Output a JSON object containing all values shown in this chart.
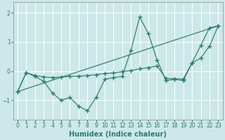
{
  "xlabel": "Humidex (Indice chaleur)",
  "ylabel": "",
  "background_color": "#cce8e8",
  "grid_color": "#ffffff",
  "line_color": "#2d7b6e",
  "xlim": [
    -0.5,
    23.5
  ],
  "ylim": [
    -1.65,
    2.35
  ],
  "yticks": [
    -1,
    0,
    1,
    2
  ],
  "xticks": [
    0,
    1,
    2,
    3,
    4,
    5,
    6,
    7,
    8,
    9,
    10,
    11,
    12,
    13,
    14,
    15,
    16,
    17,
    18,
    19,
    20,
    21,
    22,
    23
  ],
  "series1_x": [
    0,
    1,
    2,
    3,
    4,
    5,
    6,
    7,
    8,
    9,
    10,
    11,
    12,
    13,
    14,
    15,
    16,
    17,
    18,
    19,
    20,
    21,
    22,
    23
  ],
  "series1_y": [
    -0.7,
    -0.05,
    -0.18,
    -0.35,
    -0.75,
    -1.0,
    -0.9,
    -1.2,
    -1.35,
    -0.9,
    -0.28,
    -0.22,
    -0.18,
    0.72,
    1.85,
    1.28,
    0.38,
    -0.32,
    -0.28,
    -0.32,
    0.28,
    0.88,
    1.48,
    1.55
  ],
  "series2_x": [
    0,
    1,
    2,
    3,
    4,
    5,
    6,
    7,
    8,
    9,
    10,
    11,
    12,
    13,
    14,
    15,
    16,
    17,
    18,
    19,
    20,
    21,
    22,
    23
  ],
  "series2_y": [
    -0.7,
    -0.05,
    -0.15,
    -0.2,
    -0.22,
    -0.2,
    -0.18,
    -0.17,
    -0.15,
    -0.12,
    -0.08,
    -0.06,
    -0.02,
    0.02,
    0.08,
    0.12,
    0.18,
    -0.25,
    -0.26,
    -0.27,
    0.28,
    0.45,
    0.85,
    1.55
  ],
  "series3_x": [
    0,
    23
  ],
  "series3_y": [
    -0.7,
    1.55
  ],
  "xlabel_fontsize": 7,
  "tick_fontsize": 5.5
}
